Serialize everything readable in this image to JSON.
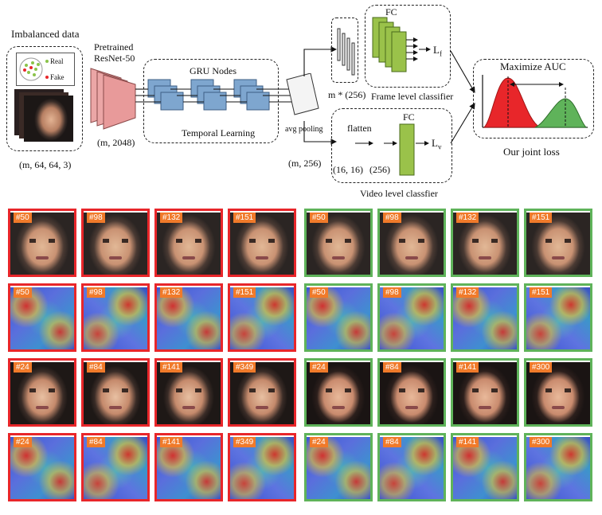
{
  "diagram": {
    "input": {
      "title": "Imbalanced data",
      "legend_real": "Real",
      "legend_fake": "Fake",
      "shape": "(m, 64, 64, 3)"
    },
    "resnet": {
      "label_line1": "Pretrained",
      "label_line2": "ResNet-50",
      "shape": "(m, 2048)"
    },
    "gru": {
      "title": "GRU Nodes",
      "caption": "Temporal Learning"
    },
    "pooling": {
      "label": "avg pooling",
      "shape": "(m, 256)"
    },
    "frame_branch": {
      "fc_label": "FC",
      "shape": "m * (256)",
      "loss": "L",
      "loss_sub": "f",
      "caption": "Frame level classifier"
    },
    "video_branch": {
      "flatten": "flatten",
      "fc_label": "FC",
      "shape1": "(16, 16)",
      "shape2": "(256)",
      "loss": "L",
      "loss_sub": "v",
      "caption": "Video level classfier"
    },
    "auc": {
      "title": "Maximize AUC",
      "caption": "Our joint loss"
    },
    "colors": {
      "red": "#e8262a",
      "green": "#5fb35a",
      "gru_block": "#7ea6cf",
      "resnet_block": "#e8a0a0",
      "fc_block": "#9ac24a",
      "tag": "#f07a2a"
    }
  },
  "grid": {
    "left": {
      "border": "red",
      "rows": [
        {
          "kind": "face",
          "tone": "1",
          "tags": [
            "#50",
            "#98",
            "#132",
            "#151"
          ]
        },
        {
          "kind": "heat",
          "tags": [
            "#50",
            "#98",
            "#132",
            "#151"
          ]
        },
        {
          "kind": "face",
          "tone": "2",
          "tags": [
            "#24",
            "#84",
            "#141",
            "#349"
          ]
        },
        {
          "kind": "heat",
          "tags": [
            "#24",
            "#84",
            "#141",
            "#349"
          ]
        }
      ]
    },
    "right": {
      "border": "green",
      "rows": [
        {
          "kind": "face",
          "tone": "1",
          "tags": [
            "#50",
            "#98",
            "#132",
            "#151"
          ]
        },
        {
          "kind": "heat",
          "tags": [
            "#50",
            "#98",
            "#132",
            "#151"
          ]
        },
        {
          "kind": "face",
          "tone": "3",
          "tags": [
            "#24",
            "#84",
            "#141",
            "#300"
          ]
        },
        {
          "kind": "heat",
          "tags": [
            "#24",
            "#84",
            "#141",
            "#300"
          ]
        }
      ]
    }
  }
}
